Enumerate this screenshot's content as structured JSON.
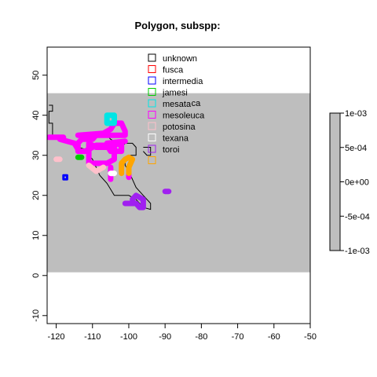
{
  "chart_data": {
    "type": "map",
    "title": "Polygon, subspp:",
    "xlabel": "",
    "ylabel": "",
    "xlim": [
      -122.5,
      -50
    ],
    "ylim": [
      -12,
      57
    ],
    "x_ticks": [
      "-120",
      "-110",
      "-100",
      "-90",
      "-80",
      "-70",
      "-60",
      "-50"
    ],
    "y_ticks": [
      "-10",
      "0",
      "10",
      "20",
      "30",
      "40",
      "50"
    ],
    "raster_band": {
      "lat_min": 0.8,
      "lat_max": 45.5,
      "color": "#bebebe"
    },
    "colorbar": {
      "labels": [
        "1e-03",
        "5e-04",
        "0e+00",
        "-5e-04",
        "-1e-03"
      ],
      "color": "#bebebe"
    },
    "legend": {
      "position": "top-center",
      "entries": [
        {
          "name": "unknown",
          "color": "#000000"
        },
        {
          "name": "fusca",
          "color": "#ff0000"
        },
        {
          "name": "intermedia",
          "color": "#0000ff"
        },
        {
          "name": "jamesi",
          "color": "#00cc00"
        },
        {
          "name": "mesata",
          "color": "#00e5e5"
        },
        {
          "name": "mesoleuca",
          "color": "#ff00ff"
        },
        {
          "name": "potosina",
          "color": "#ffc0cb"
        },
        {
          "name": "texana",
          "color": "#ffffff"
        },
        {
          "name": "toroi",
          "color": "#a020f0"
        },
        {
          "name": "",
          "color": "#ffa500"
        }
      ]
    },
    "annotation": "ca",
    "series": [
      {
        "color": "#000000",
        "kind": "outline",
        "points": [
          [
            -122,
            42.5
          ],
          [
            -121,
            42.5
          ],
          [
            -121,
            41
          ],
          [
            -122,
            41
          ],
          [
            -122,
            38
          ],
          [
            -121,
            38
          ],
          [
            -121,
            35
          ],
          [
            -120,
            35
          ],
          [
            -118,
            34
          ],
          [
            -117,
            34
          ],
          [
            -115,
            33
          ],
          [
            -114,
            32
          ],
          [
            -112,
            31.5
          ],
          [
            -111,
            30
          ],
          [
            -110,
            29
          ],
          [
            -109,
            27
          ],
          [
            -108,
            25
          ],
          [
            -106,
            23
          ],
          [
            -105,
            21.5
          ],
          [
            -104,
            20
          ],
          [
            -100,
            20
          ],
          [
            -98,
            19
          ],
          [
            -97,
            18
          ],
          [
            -96,
            17
          ],
          [
            -94,
            16.5
          ],
          [
            -94,
            18
          ],
          [
            -95,
            19
          ],
          [
            -96,
            20
          ],
          [
            -98,
            22
          ],
          [
            -99,
            24
          ],
          [
            -100,
            26
          ],
          [
            -101,
            27.5
          ],
          [
            -101,
            29
          ],
          [
            -100,
            30
          ],
          [
            -98,
            30
          ],
          [
            -98,
            32
          ],
          [
            -99,
            33
          ],
          [
            -101,
            33
          ],
          [
            -102,
            32
          ],
          [
            -102,
            33
          ],
          [
            -104,
            33.5
          ],
          [
            -105,
            34
          ],
          [
            -106,
            35
          ]
        ]
      },
      {
        "color": "#000000",
        "kind": "outline",
        "points": [
          [
            -96,
            32
          ],
          [
            -94,
            32
          ],
          [
            -94,
            30
          ],
          [
            -95,
            30
          ],
          [
            -96,
            31
          ]
        ]
      },
      {
        "color": "#ff00ff",
        "kind": "thick",
        "points": [
          [
            -122,
            34.5
          ],
          [
            -118,
            34.5
          ]
        ]
      },
      {
        "color": "#ff00ff",
        "kind": "thick",
        "points": [
          [
            -119,
            34
          ],
          [
            -115,
            33
          ],
          [
            -114,
            31.5
          ]
        ]
      },
      {
        "color": "#ff00ff",
        "kind": "thick",
        "points": [
          [
            -114,
            35
          ],
          [
            -107,
            35.5
          ],
          [
            -105,
            36.5
          ],
          [
            -104,
            38
          ],
          [
            -102,
            38
          ],
          [
            -101,
            36
          ],
          [
            -101,
            35
          ],
          [
            -109,
            35
          ],
          [
            -110,
            34
          ],
          [
            -113,
            34
          ],
          [
            -114,
            33
          ],
          [
            -114,
            31
          ],
          [
            -112,
            31
          ],
          [
            -109,
            32.5
          ],
          [
            -106,
            32.5
          ],
          [
            -105,
            31
          ],
          [
            -102,
            31
          ],
          [
            -102,
            32.5
          ],
          [
            -104,
            33
          ],
          [
            -104,
            32
          ]
        ]
      },
      {
        "color": "#ff00ff",
        "kind": "thick",
        "points": [
          [
            -111,
            33
          ],
          [
            -111,
            28
          ],
          [
            -106,
            28
          ],
          [
            -104,
            29
          ],
          [
            -104,
            32
          ],
          [
            -106,
            32
          ],
          [
            -109,
            32
          ],
          [
            -111,
            33
          ]
        ]
      },
      {
        "color": "#ff00ff",
        "kind": "thick",
        "points": [
          [
            -105,
            27
          ],
          [
            -105,
            24
          ]
        ]
      },
      {
        "color": "#ff00ff",
        "kind": "thick",
        "points": [
          [
            -100,
            25.5
          ],
          [
            -100,
            24.5
          ]
        ]
      },
      {
        "color": "#ff00ff",
        "kind": "thick",
        "points": [
          [
            -106,
            33
          ],
          [
            -101,
            33.5
          ]
        ]
      },
      {
        "color": "#00e5e5",
        "kind": "thick",
        "points": [
          [
            -106,
            40
          ],
          [
            -104,
            40
          ],
          [
            -104,
            38
          ],
          [
            -106,
            38
          ],
          [
            -106,
            40
          ]
        ]
      },
      {
        "color": "#a020f0",
        "kind": "thick",
        "points": [
          [
            -101,
            18
          ],
          [
            -98,
            18
          ],
          [
            -97,
            17
          ],
          [
            -96,
            17
          ],
          [
            -96,
            19
          ],
          [
            -98,
            20
          ],
          [
            -99,
            19
          ]
        ]
      },
      {
        "color": "#a020f0",
        "kind": "thick",
        "points": [
          [
            -90,
            21
          ],
          [
            -89,
            21
          ]
        ]
      },
      {
        "color": "#ffa500",
        "kind": "thick",
        "points": [
          [
            -102,
            25.5
          ],
          [
            -102,
            28
          ],
          [
            -101,
            29
          ],
          [
            -100,
            29.5
          ],
          [
            -99,
            29
          ],
          [
            -100,
            27
          ],
          [
            -100,
            25.5
          ]
        ]
      },
      {
        "color": "#ffc0cb",
        "kind": "thick",
        "points": [
          [
            -120,
            29
          ],
          [
            -119,
            29
          ]
        ]
      },
      {
        "color": "#ffc0cb",
        "kind": "thick",
        "points": [
          [
            -111,
            27.5
          ],
          [
            -109,
            26
          ],
          [
            -107,
            27
          ]
        ]
      },
      {
        "color": "#ffffff",
        "kind": "thick",
        "points": [
          [
            -105,
            25.5
          ],
          [
            -104,
            25.5
          ]
        ]
      },
      {
        "color": "#00cc00",
        "kind": "thick",
        "points": [
          [
            -114,
            29.5
          ],
          [
            -113,
            29.5
          ]
        ]
      },
      {
        "color": "#0000ff",
        "kind": "box",
        "points": [
          [
            -118,
            25
          ],
          [
            -117,
            25
          ],
          [
            -117,
            24
          ],
          [
            -118,
            24
          ],
          [
            -118,
            25
          ]
        ]
      }
    ]
  }
}
